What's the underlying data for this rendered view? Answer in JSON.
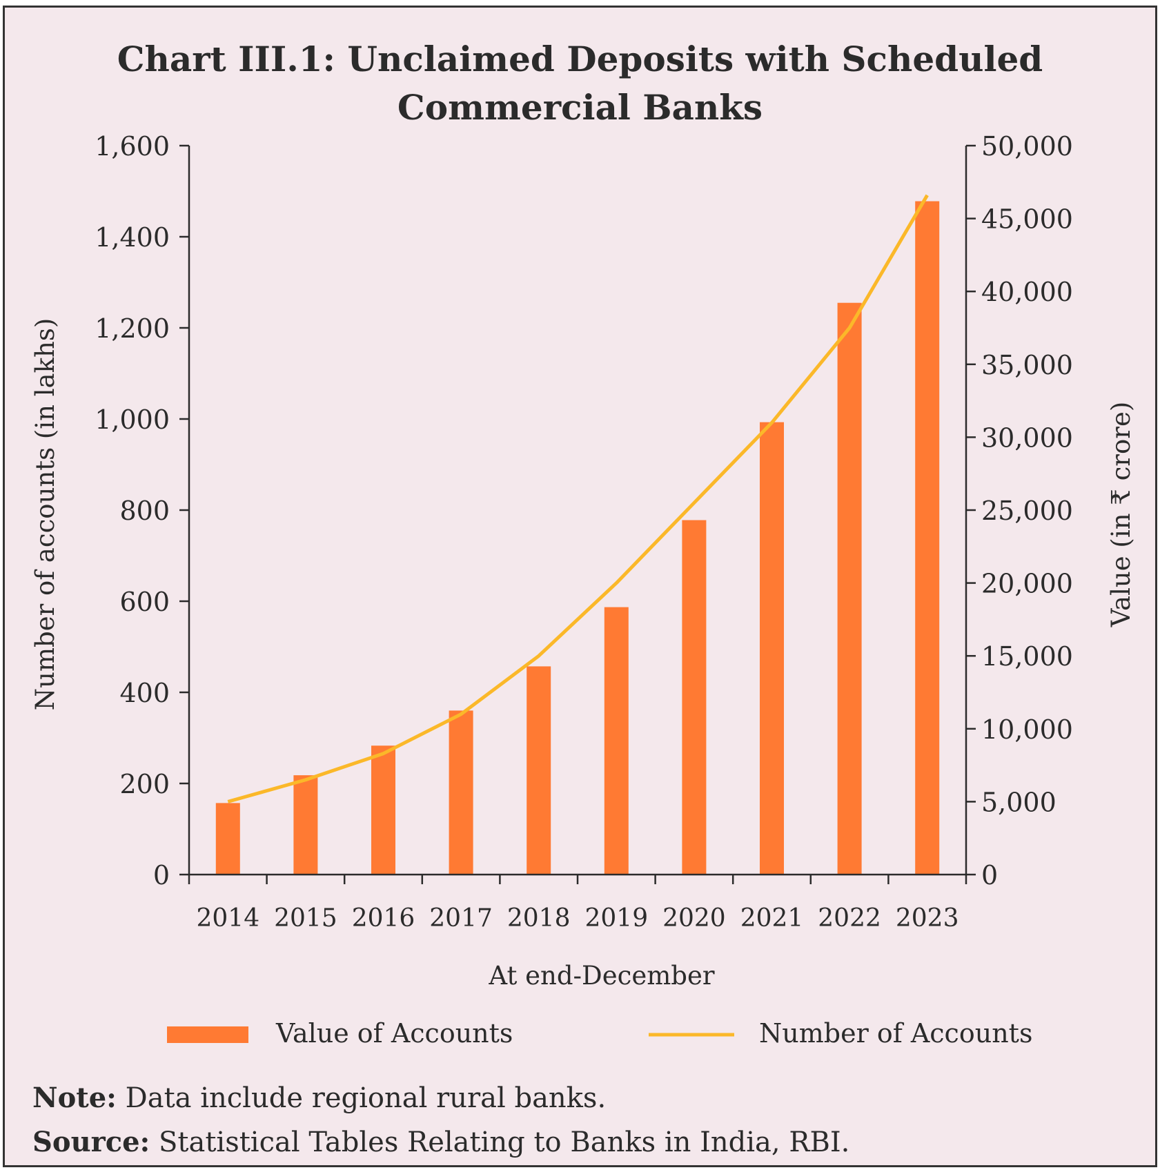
{
  "title": {
    "line1": "Chart III.1: Unclaimed Deposits with Scheduled",
    "line2": "Commercial Banks"
  },
  "note": {
    "label": "Note:",
    "text": "Data include regional rural banks."
  },
  "source": {
    "label": "Source:",
    "text": "Statistical Tables Relating to Banks in India, RBI."
  },
  "colors": {
    "bar": "#ff7a33",
    "line": "#fbb829",
    "background": "#f4e8ec",
    "axis": "#2b2b2b"
  },
  "chart_data": {
    "type": "bar",
    "title": "Chart III.1: Unclaimed Deposits with Scheduled Commercial Banks",
    "xlabel": "At end-December",
    "ylabel_left": "Number of accounts (in lakhs)",
    "ylabel_right": "Value (in ₹ crore)",
    "categories": [
      "2014",
      "2015",
      "2016",
      "2017",
      "2018",
      "2019",
      "2020",
      "2021",
      "2022",
      "2023"
    ],
    "y_left": {
      "min": 0,
      "max": 1600,
      "ticks": [
        0,
        200,
        400,
        600,
        800,
        1000,
        1200,
        1400,
        1600
      ],
      "tick_labels": [
        "0",
        "200",
        "400",
        "600",
        "800",
        "1,000",
        "1,200",
        "1,400",
        "1,600"
      ]
    },
    "y_right": {
      "min": 0,
      "max": 50000,
      "ticks": [
        0,
        5000,
        10000,
        15000,
        20000,
        25000,
        30000,
        35000,
        40000,
        45000,
        50000
      ],
      "tick_labels": [
        "0",
        "5,000",
        "10,000",
        "15,000",
        "20,000",
        "25,000",
        "30,000",
        "35,000",
        "40,000",
        "45,000",
        "50,000"
      ]
    },
    "series": [
      {
        "name": "Value of Accounts",
        "type": "bar",
        "axis": "left",
        "values": [
          157,
          218,
          283,
          360,
          457,
          587,
          778,
          993,
          1255,
          1478
        ]
      },
      {
        "name": "Number of Accounts",
        "type": "line",
        "axis": "right",
        "values": [
          5000,
          6500,
          8300,
          11000,
          15000,
          20000,
          25500,
          31000,
          37500,
          46600
        ]
      }
    ],
    "legend_position": "bottom",
    "grid": false
  }
}
